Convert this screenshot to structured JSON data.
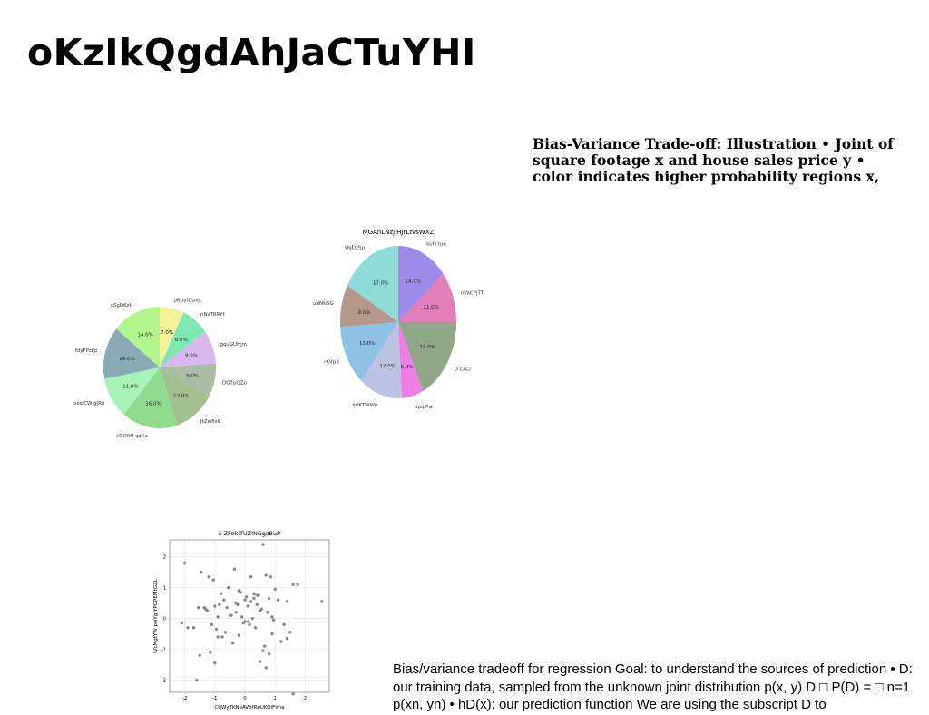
{
  "page": {
    "title": "oKzIkQgdAhJaCTuYHI",
    "side_note": "Bias-Variance Trade-off: Illustration • Joint of square footage x and house sales price y • color indicates higher probability regions x,",
    "bottom_text": "Bias/variance tradeoff for regression Goal: to understand the sources of prediction • D: our training data, sampled from the unknown joint distribution p(x, y) D □ P(D) = □ n=1 p(xn, yn) • hD(x): our prediction function We are using the subscript D to"
  },
  "chart_data": [
    {
      "type": "pie",
      "title": "",
      "labels": [
        "pRpyfDuxjc",
        "nNzTRRYf",
        "gqvGUHjm",
        "DQTpQZo",
        "JtZw8sK",
        "sQURH qzCa",
        "vewCWIgJRo",
        "fdyFPzFp",
        "cSgDKzP"
      ],
      "values": [
        7.0,
        8.0,
        9.0,
        9.0,
        12.0,
        16.0,
        11.0,
        14.0,
        14.0
      ],
      "pct_labels": [
        "7.0%",
        "8.0%",
        "9.0%",
        "9.0%",
        "12.0%",
        "16.0%",
        "11.0%",
        "14.0%",
        "14.0%"
      ],
      "colors": [
        "#f3f39a",
        "#7de8b4",
        "#d8b9ef",
        "#a9bca4",
        "#a2bf8f",
        "#8fdc8f",
        "#a7f3b9",
        "#89a9b4",
        "#b2f58d"
      ]
    },
    {
      "type": "pie",
      "title": "MGAnLNzJiHJrLtvsWXZ",
      "labels": [
        "kuO tuq",
        "nVaCPjTT",
        "D CALr",
        "dpqlPw",
        "IpiXTWWp",
        "rKVpX",
        "udNkGG",
        "UqDzSp"
      ],
      "values": [
        14.0,
        11.0,
        18.0,
        6.0,
        12.0,
        13.0,
        9.0,
        17.0
      ],
      "pct_labels": [
        "14.0%",
        "11.0%",
        "18.0%",
        "6.0%",
        "12.0%",
        "13.0%",
        "9.0%",
        "17.0%"
      ],
      "colors": [
        "#9e8ae8",
        "#e07fba",
        "#8ea888",
        "#ee7ee6",
        "#bcc2e1",
        "#90c2e8",
        "#b4988a",
        "#8fdbd6"
      ]
    },
    {
      "type": "scatter",
      "title": "s ZFokiTUZINGgzBuP",
      "xlabel": "CtjWyTKNeAVbfRpUKOlFIma",
      "ylabel": "lVcMgtYW pwYg YPOPEMtGZL",
      "xlim": [
        -2.5,
        2.8
      ],
      "ylim": [
        -2.4,
        2.55
      ],
      "xticks": [
        -2,
        -1,
        0,
        1,
        2
      ],
      "yticks": [
        -2,
        -1,
        0,
        1,
        2
      ],
      "grid": true,
      "color": "#8f858f",
      "x": [
        -2.0,
        -1.9,
        -2.1,
        -1.7,
        -1.45,
        -1.5,
        -1.2,
        -1.05,
        -1.0,
        -1.35,
        -1.25,
        -1.1,
        -0.9,
        -0.75,
        -0.55,
        -0.6,
        -0.45,
        -0.35,
        -0.25,
        -0.2,
        -0.1,
        -0.05,
        0.0,
        0.1,
        0.2,
        0.3,
        0.4,
        0.5,
        0.6,
        0.7,
        0.8,
        0.9,
        1.0,
        1.2,
        1.3,
        1.4,
        1.5,
        1.6,
        1.75,
        2.55,
        -1.6,
        -1.3,
        -1.15,
        -0.95,
        -0.8,
        -0.7,
        -0.5,
        -0.3,
        -0.15,
        0.05,
        0.15,
        0.25,
        0.35,
        0.45,
        0.55,
        0.65,
        0.75,
        0.85,
        0.95,
        1.1,
        -1.55,
        -0.85,
        -0.4,
        0.0,
        0.3,
        0.6,
        0.9,
        1.6,
        -0.65,
        0.1,
        0.5,
        -0.2,
        0.8,
        1.4,
        -1.0,
        -0.3,
        0.4,
        0.7,
        -0.9,
        0.2
      ],
      "y": [
        1.8,
        -0.3,
        -0.15,
        -0.3,
        1.5,
        -1.2,
        1.35,
        1.25,
        0.4,
        0.35,
        0.25,
        -0.2,
        0.05,
        -0.6,
        1.0,
        0.35,
        0.1,
        1.6,
        0.45,
        0.9,
        0.05,
        -0.15,
        0.6,
        -0.1,
        1.35,
        0.8,
        0.45,
        0.25,
        2.4,
        1.4,
        0.65,
        -0.5,
        0.95,
        -0.75,
        -0.2,
        0.55,
        -0.45,
        -2.45,
        1.1,
        0.55,
        -2.0,
        0.3,
        -1.1,
        -0.35,
        0.8,
        0.6,
        0.1,
        0.5,
        0.85,
        0.7,
        -0.2,
        0.0,
        -0.3,
        0.75,
        0.3,
        -0.9,
        0.2,
        1.35,
        -0.05,
        0.6,
        0.35,
        0.45,
        -0.8,
        -0.1,
        0.65,
        -1.05,
        0.05,
        1.1,
        -0.45,
        0.4,
        -1.4,
        -0.55,
        -1.15,
        -0.65,
        -1.45,
        0.2,
        0.75,
        -1.6,
        -0.6,
        0.55
      ]
    }
  ]
}
